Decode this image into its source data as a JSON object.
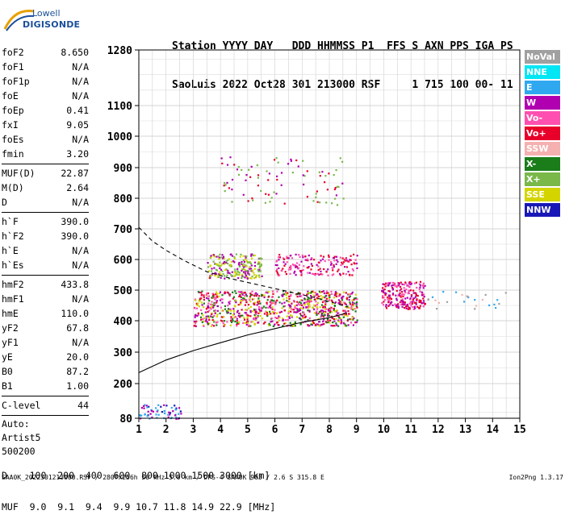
{
  "logo": {
    "line1": "Lowell",
    "line2": "DIGISONDE"
  },
  "header": {
    "line1": "Station YYYY DAY   DDD HHMMSS P1  FFS S AXN PPS IGA PS",
    "line2": "SaoLuis 2022 Oct28 301 213000 RSF     1 715 100 00- 11"
  },
  "params": {
    "group1": [
      {
        "name": "foF2",
        "value": "8.650"
      },
      {
        "name": "foF1",
        "value": "N/A"
      },
      {
        "name": "foF1p",
        "value": "N/A"
      },
      {
        "name": "foE",
        "value": "N/A"
      },
      {
        "name": "foEp",
        "value": "0.41"
      },
      {
        "name": "fxI",
        "value": "9.05"
      },
      {
        "name": "foEs",
        "value": "N/A"
      },
      {
        "name": "fmin",
        "value": "3.20"
      }
    ],
    "group2": [
      {
        "name": "MUF(D)",
        "value": "22.87"
      },
      {
        "name": "M(D)",
        "value": "2.64"
      },
      {
        "name": "D",
        "value": "N/A"
      }
    ],
    "group3": [
      {
        "name": "h`F",
        "value": "390.0"
      },
      {
        "name": "h`F2",
        "value": "390.0"
      },
      {
        "name": "h`E",
        "value": "N/A"
      },
      {
        "name": "h`Es",
        "value": "N/A"
      }
    ],
    "group4": [
      {
        "name": "hmF2",
        "value": "433.8"
      },
      {
        "name": "hmF1",
        "value": "N/A"
      },
      {
        "name": "hmE",
        "value": "110.0"
      },
      {
        "name": "yF2",
        "value": "67.8"
      },
      {
        "name": "yF1",
        "value": "N/A"
      },
      {
        "name": "yE",
        "value": "20.0"
      },
      {
        "name": "B0",
        "value": "87.2"
      },
      {
        "name": "B1",
        "value": "1.00"
      }
    ],
    "clevel": {
      "name": "C-level",
      "value": "44"
    },
    "auto": [
      "Auto:",
      "Artist5",
      "500200"
    ]
  },
  "legend": [
    {
      "label": "NoVal",
      "color": "#a0a0a0"
    },
    {
      "label": "NNE",
      "color": "#00e6f5"
    },
    {
      "label": "E",
      "color": "#30a8f0"
    },
    {
      "label": "W",
      "color": "#b000b0"
    },
    {
      "label": "Vo-",
      "color": "#ff50b0"
    },
    {
      "label": "Vo+",
      "color": "#e8002a"
    },
    {
      "label": "SSW",
      "color": "#f5b0b0"
    },
    {
      "label": "X-",
      "color": "#1a7d1a"
    },
    {
      "label": "X+",
      "color": "#7ab84a"
    },
    {
      "label": "SSE",
      "color": "#d4d400"
    },
    {
      "label": "NNW",
      "color": "#1818b8"
    }
  ],
  "dtable": {
    "line1": "D    100  200  400  600  800 1000 1500 3000 [km]",
    "line2": "MUF  9.0  9.1  9.4  9.9 10.7 11.8 14.9 22.9 [MHz]"
  },
  "footer": "SAA0K_2022301213000.RSF / 280fx256h 50 kHz 5.0 km / DPS-4 SAA0K 903 / 2.6 S 315.8 E",
  "version": "Ion2Png 1.3.17",
  "chart_data": {
    "type": "scatter",
    "x_ticks": [
      1,
      2,
      3,
      4,
      5,
      6,
      7,
      8,
      9,
      10,
      11,
      12,
      13,
      14,
      15
    ],
    "y_ticks": [
      80,
      200,
      300,
      400,
      500,
      600,
      700,
      800,
      900,
      1000,
      1100,
      1280
    ],
    "xlim": [
      1,
      15
    ],
    "ylim": [
      80,
      1280
    ],
    "grid": true,
    "traces": [
      {
        "name": "profile",
        "style": "solid",
        "points": [
          [
            1,
            235
          ],
          [
            2,
            275
          ],
          [
            3,
            305
          ],
          [
            4,
            330
          ],
          [
            5,
            355
          ],
          [
            6,
            375
          ],
          [
            7,
            395
          ],
          [
            8,
            410
          ],
          [
            8.65,
            425
          ]
        ]
      },
      {
        "name": "extrapolated",
        "style": "dashed",
        "points": [
          [
            1,
            705
          ],
          [
            1.5,
            660
          ],
          [
            2,
            630
          ],
          [
            2.7,
            595
          ],
          [
            3.5,
            560
          ],
          [
            4.5,
            535
          ],
          [
            5.5,
            515
          ],
          [
            6.5,
            495
          ],
          [
            7.5,
            475
          ],
          [
            8.5,
            450
          ],
          [
            8.65,
            445
          ]
        ]
      }
    ],
    "echo_clusters": [
      {
        "x": [
          3,
          9
        ],
        "y": [
          385,
          500
        ],
        "colors": [
          "#e8002a",
          "#ff50b0",
          "#b000b0",
          "#1a7d1a",
          "#d4d400"
        ],
        "n": 900
      },
      {
        "x": [
          9.9,
          11.5
        ],
        "y": [
          440,
          530
        ],
        "colors": [
          "#e8002a",
          "#ff50b0",
          "#b000b0"
        ],
        "n": 220
      },
      {
        "x": [
          3.5,
          5.5
        ],
        "y": [
          540,
          620
        ],
        "colors": [
          "#b000b0",
          "#d4d400",
          "#7ab84a"
        ],
        "n": 220
      },
      {
        "x": [
          6,
          9
        ],
        "y": [
          550,
          620
        ],
        "colors": [
          "#e8002a",
          "#ff50b0",
          "#b000b0"
        ],
        "n": 170
      },
      {
        "x": [
          4,
          8.5
        ],
        "y": [
          780,
          940
        ],
        "colors": [
          "#e8002a",
          "#b000b0",
          "#7ab84a"
        ],
        "n": 90
      },
      {
        "x": [
          1,
          2.6
        ],
        "y": [
          80,
          130
        ],
        "colors": [
          "#1818b8",
          "#30a8f0",
          "#b000b0"
        ],
        "n": 60
      },
      {
        "x": [
          11.5,
          14.5
        ],
        "y": [
          440,
          500
        ],
        "colors": [
          "#30a8f0",
          "#f5b0b0",
          "#a0a0a0"
        ],
        "n": 25
      }
    ]
  }
}
